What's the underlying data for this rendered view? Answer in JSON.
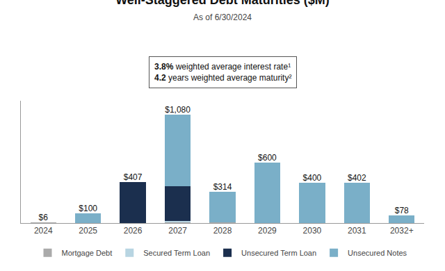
{
  "chart_data": {
    "type": "bar",
    "title": "Well-Staggered Debt Maturities ($M)",
    "subtitle": "As of 6/30/2024",
    "annotations": [
      {
        "bold": "3.8%",
        "text": " weighted average interest rate¹"
      },
      {
        "bold": "4.2",
        "text": " years weighted average maturity²"
      }
    ],
    "categories": [
      "2024",
      "2025",
      "2026",
      "2027",
      "2028",
      "2029",
      "2030",
      "2031",
      "2032+"
    ],
    "series": [
      {
        "name": "Mortgage Debt",
        "color": "#aaaaaa",
        "values": [
          6,
          0,
          0,
          6,
          6,
          0,
          0,
          0,
          0
        ]
      },
      {
        "name": "Secured Term Loan",
        "color": "#b8d5e2",
        "values": [
          0,
          0,
          0,
          14,
          0,
          0,
          0,
          0,
          0
        ]
      },
      {
        "name": "Unsecured Term Loan",
        "color": "#1b2f4e",
        "values": [
          0,
          0,
          407,
          350,
          0,
          0,
          0,
          0,
          0
        ]
      },
      {
        "name": "Unsecured Notes",
        "color": "#7aafc8",
        "values": [
          0,
          100,
          0,
          710,
          308,
          600,
          400,
          402,
          78
        ]
      }
    ],
    "totals": [
      6,
      100,
      407,
      1080,
      314,
      600,
      400,
      402,
      78
    ],
    "total_labels": [
      "$6",
      "$100",
      "$407",
      "$1,080",
      "$314",
      "$600",
      "$400",
      "$402",
      "$78"
    ],
    "stacked": true,
    "ylim": [
      0,
      1220
    ],
    "grid": false,
    "legend": "bottom",
    "tick_labels": "x"
  }
}
